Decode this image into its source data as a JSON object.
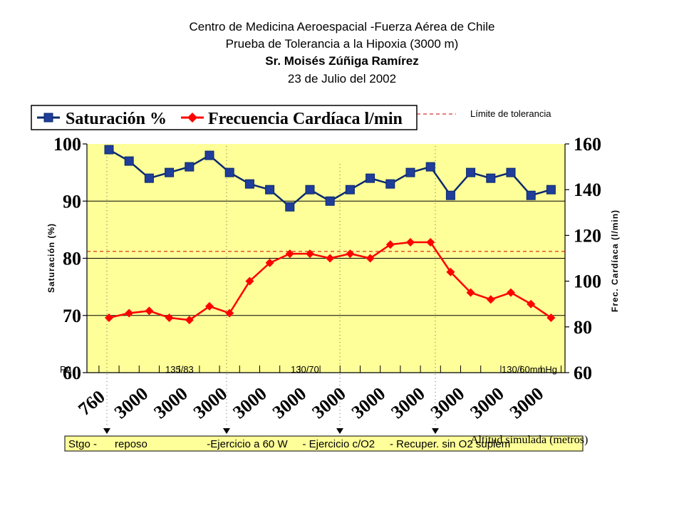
{
  "header": {
    "line1": "Centro de Medicina Aeroespacial -Fuerza Aérea de Chile",
    "line2": "Prueba de Tolerancia a la Hipoxia (3000 m)",
    "line3": "Sr. Moisés Zúñiga Ramírez",
    "line4": "23 de Julio del 2002"
  },
  "chart_data": {
    "type": "line",
    "title": "Prueba de Tolerancia a la Hipoxia (3000 m)",
    "x": [
      0,
      1,
      2,
      3,
      4,
      5,
      6,
      7,
      8,
      9,
      10,
      11,
      12,
      13,
      14,
      15,
      16,
      17,
      18,
      19,
      20,
      21,
      22
    ],
    "series": [
      {
        "name": "Saturación %",
        "axis": "left",
        "color": "#0a2a6e",
        "values": [
          99,
          97,
          94,
          95,
          96,
          98,
          95,
          93,
          92,
          89,
          92,
          90,
          92,
          94,
          93,
          95,
          96,
          91,
          95,
          94,
          95,
          91,
          92
        ]
      },
      {
        "name": "Frecuencia Cardíaca l/min",
        "axis": "right",
        "color": "#ff0000",
        "values": [
          84,
          86,
          87,
          84,
          83,
          89,
          86,
          100,
          108,
          112,
          112,
          110,
          112,
          110,
          116,
          117,
          117,
          104,
          95,
          92,
          95,
          90,
          84
        ]
      }
    ],
    "ylabel": "Saturación (%)",
    "ylabel_right": "Frec. Cardíaca (l/min)",
    "xlabel": "Altitud simulada (metros)",
    "ylim": [
      60,
      100
    ],
    "ylim_right": [
      60,
      160
    ],
    "yticks": [
      "60",
      "70",
      "80",
      "90",
      "100"
    ],
    "yticks_right": [
      "60",
      "80",
      "100",
      "120",
      "140",
      "160"
    ],
    "xtick_labels": [
      "760",
      "3000",
      "3000",
      "3000",
      "3000",
      "3000",
      "3000",
      "3000",
      "3000",
      "3000",
      "3000",
      "3000"
    ],
    "tolerance_limit": {
      "label": "Límite de tolerancia",
      "value_right": 113
    },
    "pressure_labels": [
      "PA",
      "135/83",
      "130/70",
      "130/60mmHg"
    ],
    "phases": "Stgo -      reposo                    -Ejercicio a 60 W     - Ejercicio c/O2     - Recuper. sin O2 suplem",
    "grid": "horizontal",
    "legend": "top-left",
    "background_color": "#ffff99"
  }
}
